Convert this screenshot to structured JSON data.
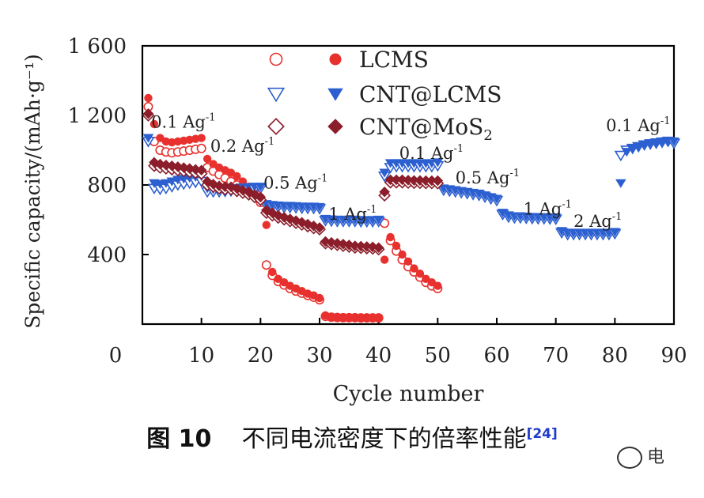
{
  "chart_data": {
    "type": "scatter",
    "title": "",
    "xlabel": "Cycle number",
    "ylabel": "Specific capacity/(mAh·g⁻¹)",
    "xlim": [
      0,
      90
    ],
    "ylim": [
      0,
      1600
    ],
    "xticks": [
      0,
      10,
      20,
      30,
      40,
      50,
      60,
      70,
      80,
      90
    ],
    "yticks": [
      400,
      800,
      1200,
      1600
    ],
    "ytick_labels": [
      "400",
      "800",
      "1 200",
      "1 600"
    ],
    "legend": {
      "placement": "top-center",
      "entries": [
        {
          "label": "LCMS",
          "open_symbol": "circle",
          "filled_symbol": "circle",
          "color": "#e8312e"
        },
        {
          "label": "CNT@LCMS",
          "open_symbol": "triangle-down",
          "filled_symbol": "triangle-down",
          "color": "#2c5fd0"
        },
        {
          "label": "CNT@MoS2",
          "open_symbol": "diamond",
          "filled_symbol": "diamond",
          "color": "#8b1e2a"
        }
      ]
    },
    "annotations": [
      {
        "text": "0.1 Ag",
        "sup": "-1",
        "x": 1.5,
        "y": 1130
      },
      {
        "text": "0.2 Ag",
        "sup": "-1",
        "x": 11.5,
        "y": 990
      },
      {
        "text": "0.5 Ag",
        "sup": "-1",
        "x": 20.5,
        "y": 780
      },
      {
        "text": "1 Ag",
        "sup": "-1",
        "x": 31.5,
        "y": 600
      },
      {
        "text": "0.1 Ag",
        "sup": "-1",
        "x": 43.5,
        "y": 950
      },
      {
        "text": "0.5 Ag",
        "sup": "-1",
        "x": 53,
        "y": 810
      },
      {
        "text": "1 Ag",
        "sup": "-1",
        "x": 64.5,
        "y": 630
      },
      {
        "text": "2 Ag",
        "sup": "-1",
        "x": 73,
        "y": 560
      },
      {
        "text": "0.1 Ag",
        "sup": "-1",
        "x": 78.5,
        "y": 1110
      }
    ],
    "series": [
      {
        "name": "LCMS",
        "color": "#e8312e",
        "symbol": "circle",
        "x": [
          1,
          2,
          3,
          4,
          5,
          6,
          7,
          8,
          9,
          10,
          11,
          12,
          13,
          14,
          15,
          16,
          17,
          18,
          19,
          20,
          21,
          22,
          23,
          24,
          25,
          26,
          27,
          28,
          29,
          30,
          31,
          32,
          33,
          34,
          35,
          36,
          37,
          38,
          39,
          40,
          41,
          42,
          43,
          44,
          45,
          46,
          47,
          48,
          49,
          50
        ],
        "charge": [
          1300,
          1150,
          1070,
          1050,
          1045,
          1050,
          1055,
          1060,
          1065,
          1070,
          950,
          920,
          900,
          885,
          870,
          850,
          820,
          790,
          760,
          730,
          570,
          300,
          260,
          240,
          220,
          205,
          190,
          175,
          165,
          150,
          50,
          40,
          40,
          38,
          38,
          38,
          37,
          37,
          37,
          37,
          370,
          500,
          450,
          400,
          360,
          320,
          290,
          260,
          240,
          220
        ],
        "discharge": [
          1250,
          1050,
          1000,
          990,
          985,
          990,
          995,
          1000,
          1005,
          1010,
          900,
          880,
          860,
          840,
          820,
          800,
          780,
          760,
          740,
          700,
          340,
          280,
          245,
          225,
          205,
          190,
          178,
          165,
          155,
          140,
          45,
          40,
          38,
          37,
          37,
          37,
          36,
          36,
          36,
          36,
          580,
          480,
          420,
          370,
          330,
          300,
          270,
          240,
          220,
          205
        ]
      },
      {
        "name": "CNT@LCMS",
        "color": "#2c5fd0",
        "symbol": "triangle-down",
        "x": [
          1,
          2,
          3,
          4,
          5,
          6,
          7,
          8,
          9,
          10,
          11,
          12,
          13,
          14,
          15,
          16,
          17,
          18,
          19,
          20,
          21,
          22,
          23,
          24,
          25,
          26,
          27,
          28,
          29,
          30,
          31,
          32,
          33,
          34,
          35,
          36,
          37,
          38,
          39,
          40,
          41,
          42,
          43,
          44,
          45,
          46,
          47,
          48,
          49,
          50,
          51,
          52,
          53,
          54,
          55,
          56,
          57,
          58,
          59,
          60,
          61,
          62,
          63,
          64,
          65,
          66,
          67,
          68,
          69,
          70,
          71,
          72,
          73,
          74,
          75,
          76,
          77,
          78,
          79,
          80,
          81,
          82,
          83,
          84,
          85,
          86,
          87,
          88,
          89,
          90
        ],
        "charge": [
          1070,
          810,
          805,
          810,
          820,
          830,
          835,
          840,
          845,
          850,
          780,
          775,
          775,
          778,
          780,
          782,
          785,
          788,
          790,
          790,
          690,
          685,
          682,
          680,
          680,
          678,
          676,
          675,
          675,
          673,
          605,
          602,
          600,
          600,
          600,
          600,
          598,
          598,
          598,
          600,
          870,
          925,
          925,
          925,
          925,
          925,
          925,
          925,
          925,
          930,
          780,
          775,
          770,
          765,
          760,
          755,
          750,
          740,
          730,
          720,
          640,
          625,
          620,
          620,
          618,
          616,
          615,
          615,
          614,
          613,
          535,
          525,
          525,
          525,
          525,
          525,
          525,
          525,
          525,
          530,
          810,
          990,
          1010,
          1020,
          1030,
          1040,
          1045,
          1050,
          1055,
          1050
        ],
        "discharge": [
          1050,
          780,
          775,
          780,
          790,
          800,
          805,
          810,
          815,
          820,
          760,
          760,
          760,
          762,
          765,
          768,
          770,
          772,
          775,
          780,
          680,
          675,
          672,
          670,
          670,
          668,
          666,
          665,
          665,
          663,
          595,
          592,
          590,
          590,
          590,
          590,
          588,
          588,
          588,
          590,
          850,
          900,
          905,
          905,
          905,
          905,
          905,
          905,
          905,
          910,
          770,
          765,
          760,
          755,
          750,
          745,
          740,
          730,
          720,
          710,
          630,
          615,
          610,
          610,
          608,
          606,
          605,
          605,
          604,
          603,
          525,
          515,
          515,
          515,
          515,
          515,
          515,
          515,
          515,
          520,
          970,
          1000,
          1010,
          1020,
          1030,
          1035,
          1040,
          1045,
          1050,
          1040
        ]
      },
      {
        "name": "CNT@MoS2",
        "color": "#8b1e2a",
        "symbol": "diamond",
        "x": [
          1,
          2,
          3,
          4,
          5,
          6,
          7,
          8,
          9,
          10,
          11,
          12,
          13,
          14,
          15,
          16,
          17,
          18,
          19,
          20,
          21,
          22,
          23,
          24,
          25,
          26,
          27,
          28,
          29,
          30,
          31,
          32,
          33,
          34,
          35,
          36,
          37,
          38,
          39,
          40,
          41,
          42,
          43,
          44,
          45,
          46,
          47,
          48,
          49,
          50
        ],
        "charge": [
          1210,
          930,
          920,
          915,
          910,
          905,
          900,
          895,
          890,
          885,
          820,
          805,
          795,
          790,
          790,
          780,
          770,
          760,
          745,
          730,
          655,
          640,
          625,
          615,
          605,
          595,
          585,
          575,
          565,
          555,
          475,
          470,
          465,
          460,
          455,
          450,
          448,
          446,
          444,
          440,
          760,
          830,
          830,
          830,
          828,
          826,
          826,
          825,
          825,
          825
        ],
        "discharge": [
          1200,
          910,
          900,
          895,
          890,
          885,
          880,
          875,
          870,
          865,
          800,
          790,
          780,
          775,
          775,
          765,
          755,
          745,
          730,
          715,
          640,
          625,
          612,
          602,
          592,
          582,
          572,
          562,
          552,
          545,
          465,
          460,
          455,
          450,
          445,
          440,
          438,
          436,
          434,
          430,
          740,
          815,
          815,
          815,
          813,
          812,
          812,
          811,
          811,
          810
        ]
      }
    ]
  },
  "caption": {
    "figure_label": "图 10",
    "text": "不同电流密度下的倍率性能",
    "ref": "[24]"
  },
  "watermark": {
    "text": "电"
  }
}
